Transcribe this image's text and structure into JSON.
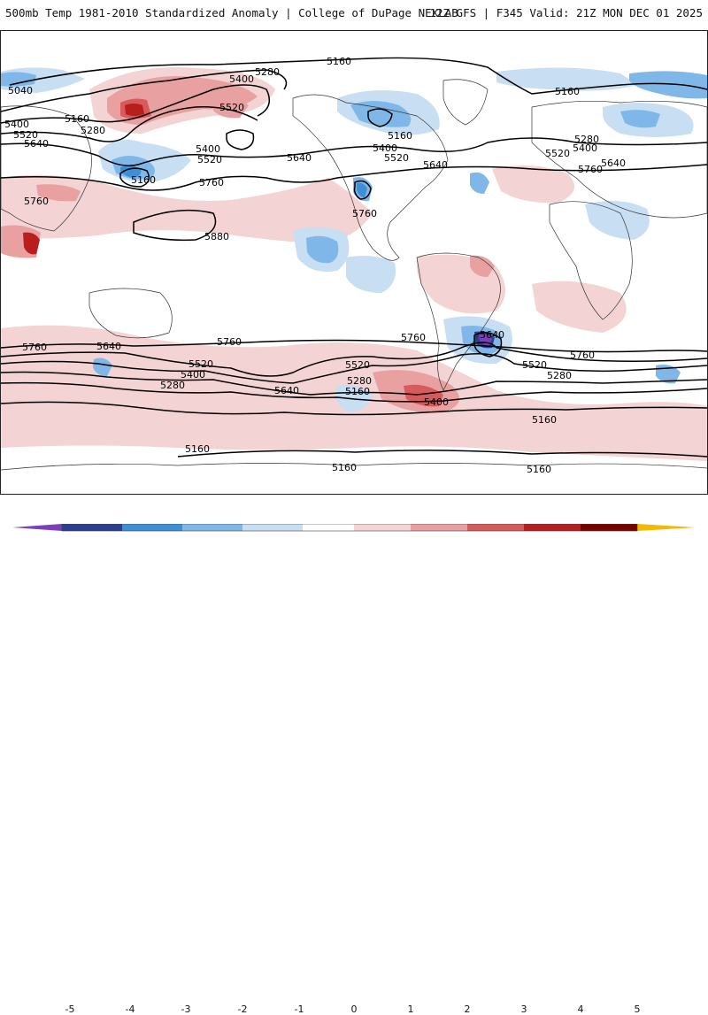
{
  "header": {
    "title": "500mb Temp 1981-2010 Standardized Anomaly | College of DuPage NEXLAB",
    "run_info": "12Z GFS | F345 Valid: 21Z MON DEC 01 2025"
  },
  "colors": {
    "neg5": "#7b3fb8",
    "neg4": "#2a3f8f",
    "neg3": "#3d8fd6",
    "neg2": "#7fb8e8",
    "neg1": "#c8def3",
    "zero": "#ffffff",
    "pos1": "#f3d3d3",
    "pos2": "#e8a0a0",
    "pos3": "#d85a5a",
    "pos4": "#b81e1e",
    "pos5": "#7a0000",
    "over": "#f5b800"
  },
  "colorbar": {
    "ticks": [
      "-5",
      "-4",
      "-3",
      "-2",
      "-1",
      "0",
      "1",
      "2",
      "3",
      "4",
      "5"
    ]
  },
  "contour_labels": [
    "5160",
    "5280",
    "5400",
    "5520",
    "5040",
    "5400",
    "5520",
    "5640",
    "5160",
    "5280",
    "5760",
    "5760",
    "5880",
    "5520",
    "5400",
    "5160",
    "5160",
    "5400",
    "5520",
    "5640",
    "5760",
    "5160",
    "5280",
    "5400",
    "5520",
    "5640",
    "5760",
    "5640",
    "5760",
    "5640",
    "5760",
    "5520",
    "5400",
    "5280",
    "5640",
    "5760",
    "5520",
    "5280",
    "5160",
    "5400",
    "5640",
    "5520",
    "5280",
    "5760",
    "5160",
    "5160",
    "5160",
    "5160"
  ]
}
